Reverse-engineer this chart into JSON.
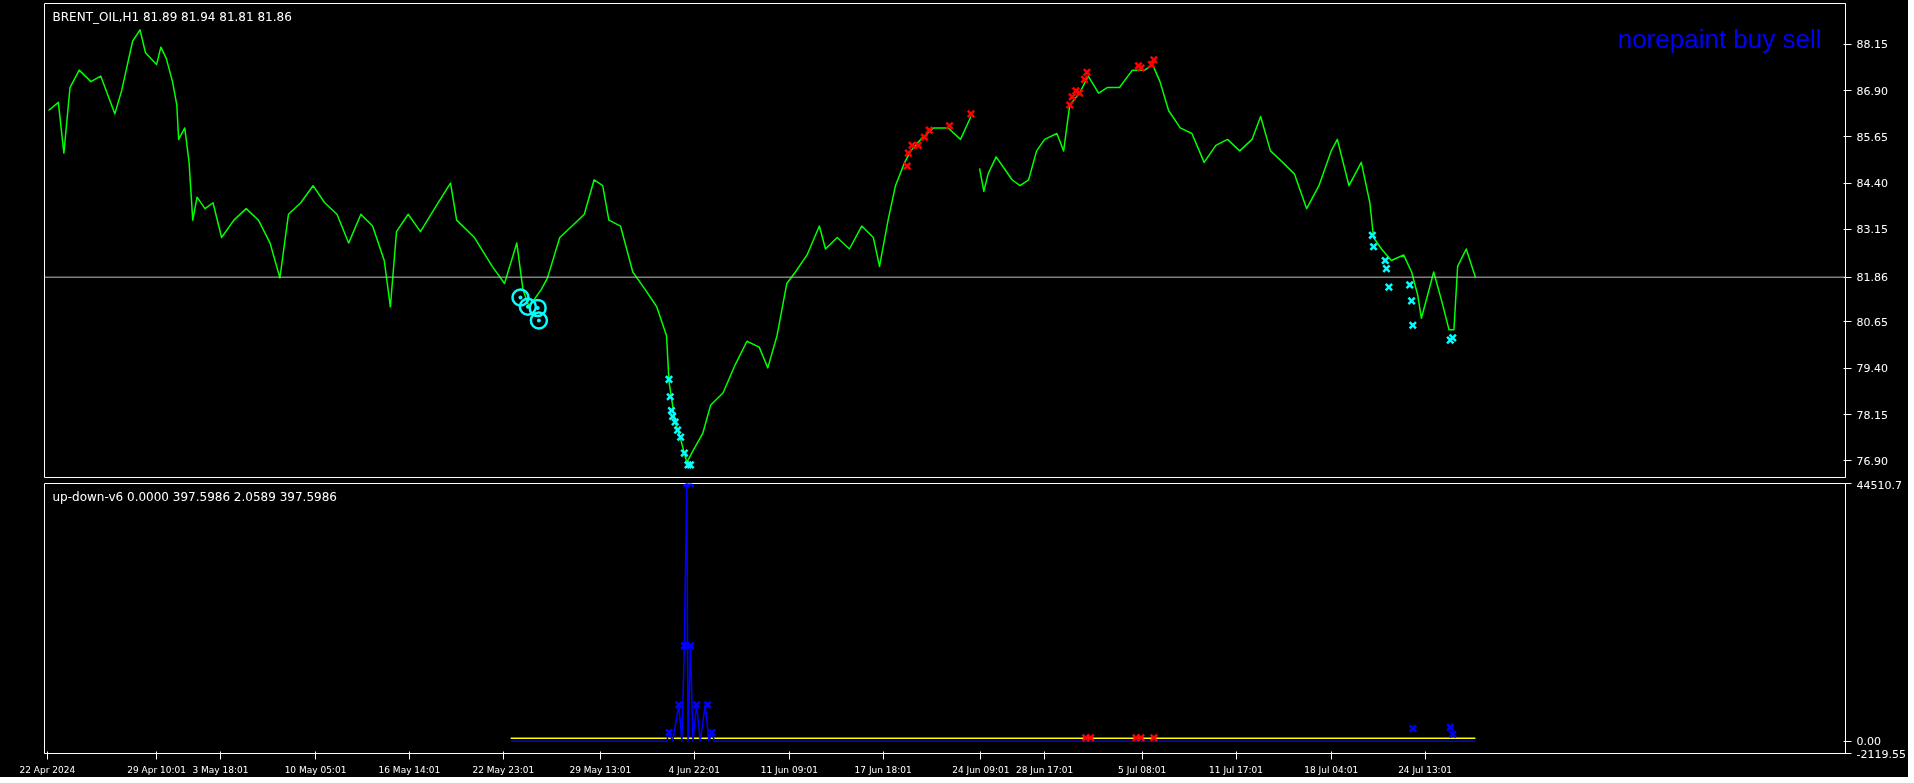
{
  "chart_data": [
    {
      "type": "line",
      "title": "BRENT_OIL,H1  81.89 81.94 81.81 81.86",
      "annotations": [
        "norepaint buy sell"
      ],
      "xlim": [
        "2024-04-21T19:26",
        "2024-08-22T02:00"
      ],
      "ylim": [
        76.45,
        89.25
      ],
      "yticks": [
        88.15,
        {
          "value": 86.9,
          "label": "86.90"
        },
        85.65,
        {
          "value": 84.4,
          "label": "84.40"
        },
        83.15,
        80.65,
        {
          "value": 79.4,
          "label": "79.40"
        },
        78.15,
        {
          "value": 76.9,
          "label": "76.90"
        }
      ],
      "tick_labels": "y",
      "grid": false,
      "ref_lines": [
        {
          "axis": "y",
          "value": 81.86,
          "label": "81.86",
          "color": "#c0c0c0"
        }
      ],
      "series": [
        {
          "color": "#00ff00",
          "x": [
            "2024-04-22T02:00",
            "2024-04-22T18:00",
            "2024-04-23T03:00",
            "2024-04-23T13:00",
            "2024-04-24T04:00",
            "2024-04-24T23:00",
            "2024-04-25T15:00",
            "2024-04-26T14:00",
            "2024-04-27T01:00",
            "2024-04-27T19:00",
            "2024-04-28T07:00",
            "2024-04-28T16:00",
            "2024-04-29T10:00",
            "2024-04-29T17:00",
            "2024-04-30T02:00",
            "2024-04-30T12:00",
            "2024-04-30T19:00",
            "2024-04-30T22:00",
            "2024-05-01T08:00",
            "2024-05-01T15:00",
            "2024-05-01T21:00",
            "2024-05-02T04:00",
            "2024-05-02T17:00",
            "2024-05-03T06:00",
            "2024-05-03T20:00",
            "2024-05-04T16:00",
            "2024-05-05T12:00",
            "2024-05-06T08:00",
            "2024-05-07T03:00",
            "2024-05-07T19:00",
            "2024-05-08T09:00",
            "2024-05-09T05:00",
            "2024-05-10T01:00",
            "2024-05-10T20:00",
            "2024-05-11T16:00",
            "2024-05-12T11:00",
            "2024-05-13T07:00",
            "2024-05-14T02:00",
            "2024-05-14T21:00",
            "2024-05-15T07:00",
            "2024-05-15T17:00",
            "2024-05-16T12:00",
            "2024-05-17T08:00",
            "2024-05-18T13:00",
            "2024-05-19T09:00",
            "2024-05-19T19:00",
            "2024-05-21T00:00",
            "2024-05-22T05:00",
            "2024-05-23T01:00",
            "2024-05-23T21:00",
            "2024-05-24T07:00",
            "2024-05-24T17:00",
            "2024-05-25T13:00",
            "2024-05-25T23:00",
            "2024-05-26T19:00",
            "2024-05-27T15:00",
            "2024-05-28T11:00",
            "2024-05-29T03:00",
            "2024-05-29T17:00",
            "2024-05-30T03:00",
            "2024-05-30T22:00",
            "2024-05-31T18:00",
            "2024-06-01T14:00",
            "2024-06-02T09:00",
            "2024-06-03T01:00",
            "2024-06-03T05:00",
            "2024-06-03T15:00",
            "2024-06-04T00:00",
            "2024-06-04T10:00",
            "2024-06-04T20:00",
            "2024-06-05T12:00",
            "2024-06-06T01:00",
            "2024-06-06T21:00",
            "2024-06-07T17:00",
            "2024-06-08T12:00",
            "2024-06-09T08:00",
            "2024-06-09T22:00",
            "2024-06-10T13:00",
            "2024-06-11T05:00",
            "2024-06-11T19:00",
            "2024-06-12T14:00",
            "2024-06-13T10:00",
            "2024-06-13T20:00",
            "2024-06-14T15:00",
            "2024-06-15T11:00",
            "2024-06-16T07:00",
            "2024-06-17T02:00",
            "2024-06-17T12:00",
            "2024-06-18T02:00",
            "2024-06-18T14:00",
            "2024-06-19T05:00",
            "2024-06-19T15:00",
            "2024-06-20T07:00",
            "2024-06-21T04:00",
            "2024-06-22T04:00",
            "2024-06-23T00:00",
            "2024-06-23T17:00",
            "2024-06-23T19:00",
            "2024-06-24T07:00",
            "2024-06-24T14:00",
            "2024-06-24T21:00",
            "2024-06-25T10:00",
            "2024-06-25T23:00",
            "2024-06-26T12:00",
            "2024-06-27T01:00",
            "2024-06-27T15:00",
            "2024-06-28T04:00",
            "2024-06-28T17:00",
            "2024-06-29T13:00",
            "2024-06-30T00:00",
            "2024-06-30T10:00",
            "2024-07-01T02:00",
            "2024-07-01T16:00",
            "2024-07-02T09:00",
            "2024-07-02T23:00",
            "2024-07-03T19:00",
            "2024-07-04T16:00",
            "2024-07-05T12:00",
            "2024-07-06T01:00",
            "2024-07-06T13:00",
            "2024-07-07T03:00",
            "2024-07-07T22:00",
            "2024-07-08T17:00",
            "2024-07-09T13:00",
            "2024-07-10T08:00",
            "2024-07-11T03:00",
            "2024-07-11T23:00",
            "2024-07-12T19:00",
            "2024-07-13T09:00",
            "2024-07-14T01:00",
            "2024-07-14T21:00",
            "2024-07-15T16:00",
            "2024-07-16T12:00",
            "2024-07-17T08:00",
            "2024-07-18T04:00",
            "2024-07-18T14:00",
            "2024-07-19T09:00",
            "2024-07-20T05:00",
            "2024-07-20T19:00",
            "2024-07-21T01:00",
            "2024-07-21T14:00",
            "2024-07-22T06:00",
            "2024-07-23T02:00",
            "2024-07-23T15:00",
            "2024-07-24T01:00",
            "2024-07-24T07:00",
            "2024-07-24T17:00",
            "2024-07-25T03:00",
            "2024-07-25T16:00",
            "2024-07-26T04:00",
            "2024-07-26T12:00",
            "2024-07-26T18:00",
            "2024-07-27T08:00",
            "2024-07-27T23:00"
          ],
          "values": [
            86.36,
            86.58,
            85.21,
            86.98,
            87.45,
            87.14,
            87.29,
            86.27,
            86.89,
            88.23,
            88.54,
            87.92,
            87.6,
            88.07,
            87.76,
            87.14,
            86.51,
            85.58,
            85.89,
            84.96,
            83.4,
            84.02,
            83.71,
            83.87,
            82.93,
            83.4,
            83.71,
            83.4,
            82.78,
            81.84,
            83.56,
            83.87,
            84.33,
            83.87,
            83.56,
            82.78,
            83.56,
            83.24,
            82.31,
            81.06,
            83.09,
            83.56,
            83.09,
            83.87,
            84.4,
            83.4,
            82.93,
            82.15,
            81.69,
            82.78,
            81.53,
            81.06,
            81.53,
            81.84,
            82.93,
            83.24,
            83.56,
            84.49,
            84.33,
            83.4,
            83.24,
            82.0,
            81.53,
            81.06,
            80.28,
            79.04,
            77.95,
            77.48,
            76.86,
            77.17,
            77.64,
            78.41,
            78.73,
            79.5,
            80.13,
            79.97,
            79.41,
            80.28,
            81.69,
            82.0,
            82.46,
            83.24,
            82.62,
            82.93,
            82.62,
            83.24,
            82.93,
            82.15,
            83.4,
            84.33,
            84.96,
            85.27,
            85.58,
            85.89,
            85.89,
            85.58,
            86.2,
            null,
            84.8,
            84.18,
            84.65,
            85.11,
            84.8,
            84.49,
            84.33,
            84.49,
            85.27,
            85.58,
            85.74,
            85.27,
            86.51,
            86.83,
            87.29,
            86.83,
            86.98,
            86.98,
            87.45,
            87.45,
            87.6,
            87.14,
            86.36,
            85.89,
            85.74,
            84.96,
            85.42,
            85.58,
            85.27,
            85.58,
            86.2,
            85.27,
            84.96,
            84.65,
            83.71,
            84.33,
            85.27,
            85.58,
            84.33,
            84.96,
            83.87,
            82.93,
            82.62,
            82.31,
            82.46,
            82.0,
            81.37,
            80.75,
            81.37,
            82.0,
            81.22,
            80.44,
            80.44,
            82.15,
            82.62,
            81.86
          ]
        },
        {
          "type": "scatter",
          "marker": "cross",
          "color": "#00ffff",
          "x": [
            "2024-06-03T05:00",
            "2024-06-03T07:00",
            "2024-06-03T09:00",
            "2024-06-03T11:00",
            "2024-06-03T15:00",
            "2024-06-03T19:00",
            "2024-06-04T00:00",
            "2024-06-04T06:00",
            "2024-06-04T12:00",
            "2024-06-04T16:00",
            "2024-07-20T23:00",
            "2024-07-21T01:00",
            "2024-07-21T20:00",
            "2024-07-21T22:00",
            "2024-07-22T02:00",
            "2024-07-23T12:00",
            "2024-07-23T15:00",
            "2024-07-23T17:00",
            "2024-07-26T06:00",
            "2024-07-26T10:00"
          ],
          "values": [
            79.1,
            78.63,
            78.26,
            78.1,
            77.95,
            77.73,
            77.54,
            77.11,
            76.79,
            76.79,
            82.99,
            82.68,
            82.31,
            82.09,
            81.59,
            81.65,
            81.22,
            80.56,
            80.16,
            80.22
          ]
        },
        {
          "type": "scatter",
          "marker": "cross",
          "color": "#ff0000",
          "x": [
            "2024-06-19T09:00",
            "2024-06-19T11:00",
            "2024-06-19T17:00",
            "2024-06-20T03:00",
            "2024-06-20T13:00",
            "2024-06-20T21:00",
            "2024-06-22T06:00",
            "2024-06-23T17:00",
            "2024-06-30T10:00",
            "2024-06-30T14:00",
            "2024-06-30T20:00",
            "2024-07-01T02:00",
            "2024-07-01T10:00",
            "2024-07-01T14:00",
            "2024-07-05T02:00",
            "2024-07-05T06:00",
            "2024-07-05T23:00",
            "2024-07-06T03:00"
          ],
          "values": [
            84.86,
            85.21,
            85.42,
            85.42,
            85.64,
            85.83,
            85.95,
            86.27,
            86.51,
            86.73,
            86.89,
            86.83,
            87.2,
            87.39,
            87.57,
            87.51,
            87.6,
            87.73
          ]
        },
        {
          "type": "scatter",
          "marker": "circle",
          "color": "#00ffff",
          "x": [
            "2024-05-24T03:00",
            "2024-05-24T15:00",
            "2024-05-25T07:00",
            "2024-05-25T09:00"
          ],
          "values": [
            81.31,
            81.06,
            81.03,
            80.69
          ]
        }
      ]
    },
    {
      "type": "line",
      "title": "up-down-v6 0.0000 397.5986 2.0589 397.5986",
      "xlim": [
        "2024-04-21T19:26",
        "2024-08-22T02:00"
      ],
      "xticks": [
        {
          "value": "2024-04-22T00:00",
          "label": "22 Apr 2024"
        },
        {
          "value": "2024-04-29T10:01",
          "label": "29 Apr 10:01"
        },
        {
          "value": "2024-05-03T18:01",
          "label": "3 May 18:01"
        },
        {
          "value": "2024-05-10T05:01",
          "label": "10 May 05:01"
        },
        {
          "value": "2024-05-16T14:01",
          "label": "16 May 14:01"
        },
        {
          "value": "2024-05-22T23:01",
          "label": "22 May 23:01"
        },
        {
          "value": "2024-05-29T13:01",
          "label": "29 May 13:01"
        },
        {
          "value": "2024-06-04T22:01",
          "label": "4 Jun 22:01"
        },
        {
          "value": "2024-06-11T09:01",
          "label": "11 Jun 09:01"
        },
        {
          "value": "2024-06-17T18:01",
          "label": "17 Jun 18:01"
        },
        {
          "value": "2024-06-24T09:01",
          "label": "24 Jun 09:01"
        },
        {
          "value": "2024-06-28T17:01",
          "label": "28 Jun 17:01"
        },
        {
          "value": "2024-07-05T08:01",
          "label": "5 Jul 08:01"
        },
        {
          "value": "2024-07-11T17:01",
          "label": "11 Jul 17:01"
        },
        {
          "value": "2024-07-18T04:01",
          "label": "18 Jul 04:01"
        },
        {
          "value": "2024-07-24T13:01",
          "label": "24 Jul 13:01"
        }
      ],
      "ylim": [
        -2119.55,
        44510.7
      ],
      "yticks": [
        44510.7,
        {
          "value": 0,
          "label": "0.00"
        },
        -2119.55
      ],
      "grid": false,
      "series": [
        {
          "color": "#ffff00",
          "x": [
            "2024-05-23T11:00",
            "2024-07-27T23:00"
          ],
          "values": [
            500,
            500
          ]
        },
        {
          "color": "#0000ff",
          "x": [
            "2024-05-23T11:00",
            "2024-06-03T01:00",
            "2024-06-03T05:00",
            "2024-06-03T11:00",
            "2024-06-03T21:00",
            "2024-06-04T02:00",
            "2024-06-04T06:00",
            "2024-06-04T10:00",
            "2024-06-04T12:00",
            "2024-06-04T16:00",
            "2024-06-04T20:00",
            "2024-06-05T02:00",
            "2024-06-05T08:00",
            "2024-06-05T16:00",
            "2024-06-05T22:00",
            "2024-06-06T03:00",
            "2024-06-06T07:00",
            "2024-07-27T23:00"
          ],
          "values": [
            0,
            0,
            1500,
            0,
            6300,
            0,
            16500,
            44500,
            0,
            16500,
            0,
            6300,
            0,
            6300,
            0,
            1500,
            0,
            0
          ]
        },
        {
          "type": "scatter",
          "marker": "cross",
          "color": "#0000ff",
          "x": [
            "2024-06-04T10:00",
            "2024-06-04T16:00",
            "2024-06-04T06:00",
            "2024-06-04T16:00",
            "2024-06-03T21:00",
            "2024-06-05T02:00",
            "2024-06-05T20:00",
            "2024-06-03T05:00",
            "2024-06-06T03:00",
            "2024-07-23T17:00",
            "2024-07-26T06:00",
            "2024-07-26T10:00"
          ],
          "values": [
            44500,
            44500,
            16500,
            16500,
            6300,
            6300,
            6300,
            1500,
            1500,
            2200,
            2400,
            1200
          ]
        },
        {
          "type": "scatter",
          "marker": "cross",
          "color": "#ff0000",
          "x": [
            "2024-07-01T12:00",
            "2024-07-01T20:00",
            "2024-07-04T22:00",
            "2024-07-05T06:00",
            "2024-07-06T03:00"
          ],
          "values": [
            600,
            600,
            600,
            600,
            600
          ]
        }
      ]
    }
  ]
}
